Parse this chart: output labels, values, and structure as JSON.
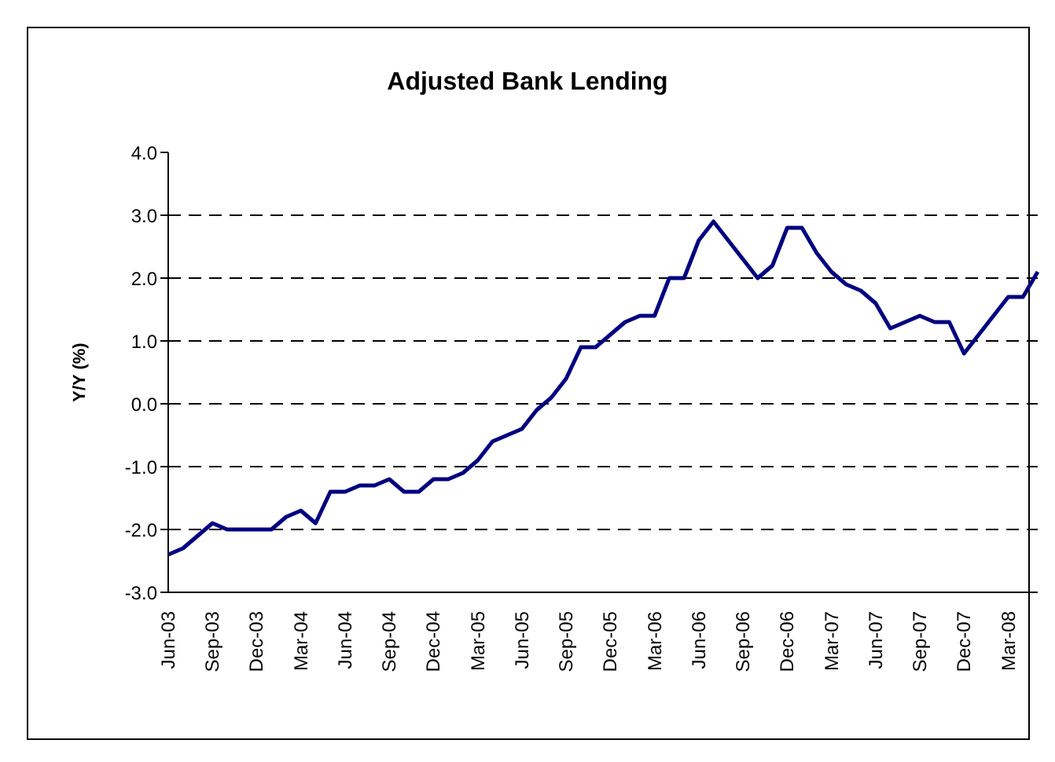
{
  "chart_data": {
    "type": "line",
    "title": "Adjusted Bank Lending",
    "ylabel": "Y/Y (%)",
    "categories": [
      "Jun-03",
      null,
      null,
      "Sep-03",
      null,
      null,
      "Dec-03",
      null,
      null,
      "Mar-04",
      null,
      null,
      "Jun-04",
      null,
      null,
      "Sep-04",
      null,
      null,
      "Dec-04",
      null,
      null,
      "Mar-05",
      null,
      null,
      "Jun-05",
      null,
      null,
      "Sep-05",
      null,
      null,
      "Dec-05",
      null,
      null,
      "Mar-06",
      null,
      null,
      "Jun-06",
      null,
      null,
      "Sep-06",
      null,
      null,
      "Dec-06",
      null,
      null,
      "Mar-07",
      null,
      null,
      "Jun-07",
      null,
      null,
      "Sep-07",
      null,
      null,
      "Dec-07",
      null,
      null,
      "Mar-08",
      null,
      null
    ],
    "series": [
      {
        "color": "#000080",
        "values": [
          -2.4,
          -2.3,
          -2.1,
          -1.9,
          -2.0,
          -2.0,
          -2.0,
          -2.0,
          -1.8,
          -1.7,
          -1.9,
          -1.4,
          -1.4,
          -1.3,
          -1.3,
          -1.2,
          -1.4,
          -1.4,
          -1.2,
          -1.2,
          -1.1,
          -0.9,
          -0.6,
          -0.5,
          -0.4,
          -0.1,
          0.1,
          0.4,
          0.9,
          0.9,
          1.1,
          1.3,
          1.4,
          1.4,
          2.0,
          2.0,
          2.6,
          2.9,
          2.6,
          2.3,
          2.0,
          2.2,
          2.8,
          2.8,
          2.4,
          2.1,
          1.9,
          1.8,
          1.6,
          1.2,
          1.3,
          1.4,
          1.3,
          1.3,
          0.8,
          1.1,
          1.4,
          1.7,
          1.7,
          2.1
        ]
      }
    ],
    "ylim": [
      -3,
      4
    ],
    "yticks": [
      {
        "value": -3,
        "label": "-3.0"
      },
      {
        "value": -2,
        "label": "-2.0"
      },
      {
        "value": -1,
        "label": "-1.0"
      },
      {
        "value": 0,
        "label": "0.0"
      },
      {
        "value": 1,
        "label": "1.0"
      },
      {
        "value": 2,
        "label": "2.0"
      },
      {
        "value": 3,
        "label": "3.0"
      },
      {
        "value": 4,
        "label": "4.0"
      }
    ],
    "grid": "y",
    "legend": false,
    "marker": "none",
    "line_style": "solid"
  }
}
